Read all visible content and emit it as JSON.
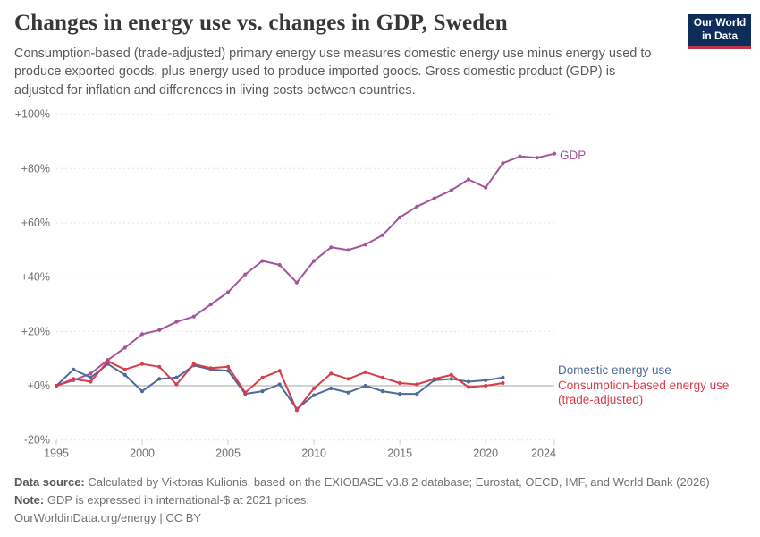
{
  "header": {
    "title": "Changes in energy use vs. changes in GDP, Sweden",
    "subtitle": "Consumption-based (trade-adjusted) primary energy use measures domestic energy use minus energy used to produce exported goods, plus energy used to produce imported goods. Gross domestic product (GDP) is adjusted for inflation and differences in living costs between countries.",
    "logo": {
      "line1": "Our World",
      "line2": "in Data"
    }
  },
  "chart_data": {
    "type": "line",
    "title": "Changes in energy use vs. changes in GDP, Sweden",
    "xlabel": "",
    "ylabel": "",
    "xlim": [
      1995,
      2024
    ],
    "ylim": [
      -20,
      100
    ],
    "grid": "horizontal-dashed",
    "legend_position": "end-of-line",
    "x": [
      1995,
      1996,
      1997,
      1998,
      1999,
      2000,
      2001,
      2002,
      2003,
      2004,
      2005,
      2006,
      2007,
      2008,
      2009,
      2010,
      2011,
      2012,
      2013,
      2014,
      2015,
      2016,
      2017,
      2018,
      2019,
      2020,
      2021,
      2022,
      2023,
      2024
    ],
    "xticks": [
      1995,
      2000,
      2005,
      2010,
      2015,
      2020,
      2024
    ],
    "yticks": [
      {
        "value": 100,
        "label": "+100%"
      },
      {
        "value": 80,
        "label": "+80%"
      },
      {
        "value": 60,
        "label": "+60%"
      },
      {
        "value": 40,
        "label": "+40%"
      },
      {
        "value": 20,
        "label": "+20%"
      },
      {
        "value": 0,
        "label": "+0%"
      },
      {
        "value": -20,
        "label": "-20%"
      }
    ],
    "series": [
      {
        "id": "gdp",
        "name": "GDP",
        "color": "#a2559c",
        "values": [
          0,
          2,
          4.5,
          9.5,
          14,
          19,
          20.5,
          23.5,
          25.5,
          30,
          34.5,
          41,
          46,
          44.5,
          38,
          46,
          51,
          50,
          52,
          55.5,
          62,
          66,
          69,
          72,
          76,
          73,
          82,
          84.5,
          84,
          85.5
        ]
      },
      {
        "id": "domestic",
        "name": "Domestic energy use",
        "color": "#4c6a9c",
        "values": [
          0,
          6,
          3,
          8,
          4,
          -2,
          2.5,
          3,
          7.5,
          6,
          5.5,
          -3,
          -2,
          0.5,
          -8.5,
          -3.5,
          -1,
          -2.5,
          0,
          -2,
          -3,
          -3,
          2,
          2.5,
          1.5,
          2,
          3,
          null,
          null,
          null
        ]
      },
      {
        "id": "consumption",
        "name": "Consumption-based energy use (trade-adjusted)",
        "color": "#d73c4c",
        "values": [
          0,
          2.5,
          1.5,
          9,
          6,
          8,
          7,
          0.5,
          8,
          6.5,
          7,
          -2.5,
          3,
          5.5,
          -9,
          -1,
          4.5,
          2.5,
          5,
          3,
          1,
          0.5,
          2.5,
          4,
          -0.5,
          0,
          1,
          null,
          null,
          null
        ]
      }
    ]
  },
  "annotations": {
    "gdp_label": "GDP",
    "domestic_label": "Domestic energy use",
    "consumption_label_line1": "Consumption-based energy use",
    "consumption_label_line2": "(trade-adjusted)"
  },
  "footer": {
    "data_source_label": "Data source:",
    "data_source_text": " Calculated by Viktoras Kulionis, based on the EXIOBASE v3.8.2 database; Eurostat, OECD, IMF, and World Bank (2026)",
    "note_label": "Note:",
    "note_text": " GDP is expressed in international-$ at 2021 prices.",
    "link_text": "OurWorldinData.org/energy | CC BY"
  },
  "colors": {
    "gdp": "#a2559c",
    "domestic": "#4c6a9c",
    "consumption": "#d73c4c",
    "logo_bg": "#0d2e5a",
    "logo_bar": "#c0354a"
  }
}
